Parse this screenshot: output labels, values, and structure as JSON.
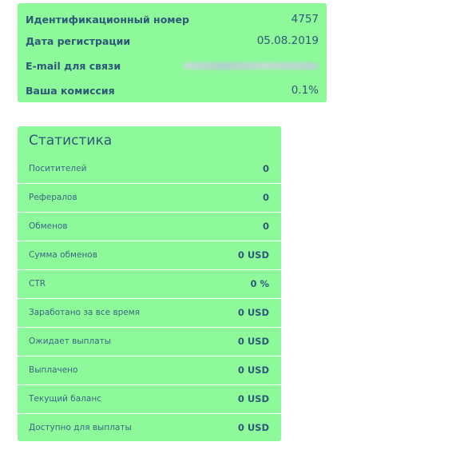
{
  "account": {
    "rows": [
      {
        "label": "Идентификационный номер",
        "value": "4757"
      },
      {
        "label": "Дата регистрации",
        "value": "05.08.2019"
      },
      {
        "label": "E-mail для связи",
        "value": ""
      },
      {
        "label": "Ваша комиссия",
        "value": "0.1%"
      }
    ]
  },
  "stats": {
    "title": "Статистика",
    "rows": [
      {
        "label": "Поситителей",
        "value": "0"
      },
      {
        "label": "Рефералов",
        "value": "0"
      },
      {
        "label": "Обменов",
        "value": "0"
      },
      {
        "label": "Сумма обменов",
        "value": "0 USD"
      },
      {
        "label": "CTR",
        "value": "0 %"
      },
      {
        "label": "Заработано за все время",
        "value": "0 USD"
      },
      {
        "label": "Ожидает выплаты",
        "value": "0 USD"
      },
      {
        "label": "Выплачено",
        "value": "0 USD"
      },
      {
        "label": "Текущий баланс",
        "value": "0 USD"
      },
      {
        "label": "Доступно для выплаты",
        "value": "0 USD"
      }
    ]
  },
  "colors": {
    "panel_bg": "#8df99a",
    "text": "#2e5878",
    "row_divider": "#ffffff"
  }
}
